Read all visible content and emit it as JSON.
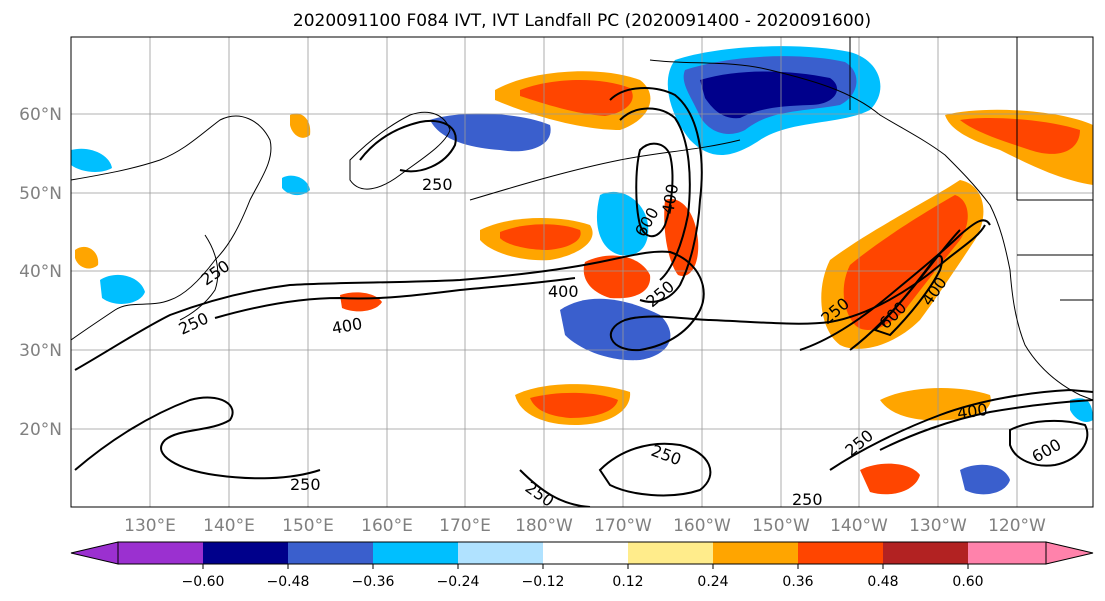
{
  "title": "2020091100 F084 IVT, IVT Landfall PC (2020091400 - 2020091600)",
  "map": {
    "lat_labels": [
      {
        "label": "60°N",
        "lat": 60
      },
      {
        "label": "50°N",
        "lat": 50
      },
      {
        "label": "40°N",
        "lat": 40
      },
      {
        "label": "30°N",
        "lat": 30
      },
      {
        "label": "20°N",
        "lat": 20
      }
    ],
    "lon_labels": [
      {
        "label": "130°E",
        "lon": 130
      },
      {
        "label": "140°E",
        "lon": 140
      },
      {
        "label": "150°E",
        "lon": 150
      },
      {
        "label": "160°E",
        "lon": 160
      },
      {
        "label": "170°E",
        "lon": 170
      },
      {
        "label": "180°W",
        "lon": 180
      },
      {
        "label": "170°W",
        "lon": 190
      },
      {
        "label": "160°W",
        "lon": 200
      },
      {
        "label": "150°W",
        "lon": 210
      },
      {
        "label": "140°W",
        "lon": 220
      },
      {
        "label": "130°W",
        "lon": 230
      },
      {
        "label": "120°W",
        "lon": 240
      }
    ],
    "contour_labels": [
      "250",
      "250",
      "250",
      "400",
      "250",
      "250",
      "250",
      "600",
      "400",
      "400",
      "250",
      "600",
      "400",
      "250",
      "400",
      "600",
      "250",
      "250"
    ],
    "grid": true
  },
  "colorbar": {
    "ticks": [
      "−0.60",
      "−0.48",
      "−0.36",
      "−0.24",
      "−0.12",
      "0.12",
      "0.24",
      "0.36",
      "0.48",
      "0.60"
    ],
    "colors": [
      "#9b30d0",
      "#00008b",
      "#3a5fcd",
      "#00bfff",
      "#b0e2ff",
      "#ffffff",
      "#ffec8b",
      "#ffa500",
      "#ff4500",
      "#b22222",
      "#ff82ab"
    ]
  }
}
